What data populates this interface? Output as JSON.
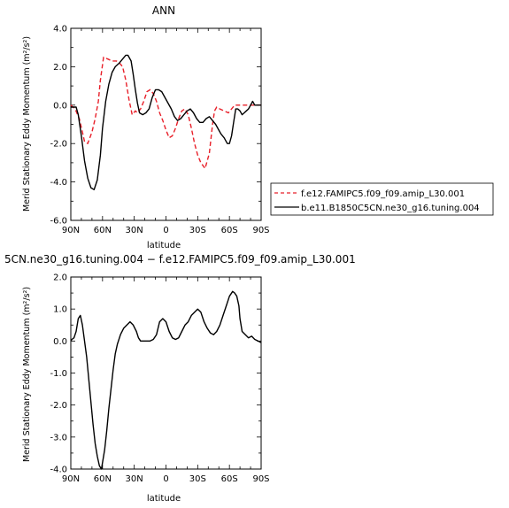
{
  "chart_data": [
    {
      "type": "line",
      "title": "ANN",
      "xlabel": "latitude",
      "ylabel": "Merid Stationary Eddy Momentum  (m²/s²)",
      "x_ticks": [
        "90N",
        "60N",
        "30N",
        "0",
        "30S",
        "60S",
        "90S"
      ],
      "y_ticks": [
        "-6.0",
        "-4.0",
        "-2.0",
        "0.0",
        "2.0",
        "4.0"
      ],
      "xlim": [
        90,
        -90
      ],
      "ylim": [
        -6,
        4
      ],
      "grid": false,
      "legend": "right",
      "series": [
        {
          "name": "f.e12.FAMIPC5.f09_f09.amip_L30.001",
          "color": "#e8202a",
          "dash": "dashed",
          "x": [
            90,
            86,
            82,
            79,
            77,
            74,
            70,
            67,
            64,
            62,
            59,
            55,
            51,
            47,
            44,
            41,
            38,
            35,
            32,
            29,
            27,
            24,
            21,
            18,
            15,
            12,
            9,
            6,
            3,
            0,
            -3,
            -6,
            -9,
            -12,
            -15,
            -18,
            -21,
            -24,
            -27,
            -30,
            -33,
            -37,
            -41,
            -44,
            -46,
            -48,
            -51,
            -55,
            -59,
            -62,
            -65,
            -67,
            -70,
            -73,
            -77,
            -80,
            -83,
            -85,
            -87,
            -90
          ],
          "values": [
            0.0,
            -0.2,
            -0.7,
            -1.4,
            -1.9,
            -2.0,
            -1.4,
            -0.7,
            0.2,
            1.3,
            2.5,
            2.4,
            2.3,
            2.3,
            2.2,
            2.0,
            1.3,
            0.3,
            -0.5,
            -0.3,
            -0.4,
            -0.2,
            0.2,
            0.7,
            0.8,
            0.6,
            0.2,
            -0.4,
            -0.8,
            -1.3,
            -1.7,
            -1.6,
            -1.2,
            -0.7,
            -0.3,
            -0.2,
            -0.5,
            -1.2,
            -2.0,
            -2.6,
            -3.0,
            -3.3,
            -2.5,
            -1.0,
            -0.3,
            -0.1,
            -0.2,
            -0.3,
            -0.4,
            -0.2,
            0.0,
            0.0,
            0.0,
            0.0,
            0.0,
            0.0,
            0.0,
            0.0,
            0.0,
            0.0
          ]
        },
        {
          "name": "b.e11.B1850C5CN.ne30_g16.tuning.004",
          "color": "#000000",
          "dash": "solid",
          "x": [
            90,
            87,
            85,
            83,
            80,
            77,
            74,
            71,
            68,
            65,
            62,
            60,
            57,
            54,
            51,
            48,
            44,
            41,
            38,
            36,
            33,
            31,
            29,
            27,
            25,
            22,
            19,
            16,
            13,
            10,
            7,
            4,
            1,
            -2,
            -5,
            -8,
            -11,
            -14,
            -17,
            -20,
            -23,
            -26,
            -29,
            -32,
            -35,
            -38,
            -41,
            -44,
            -47,
            -50,
            -52,
            -55,
            -58,
            -60,
            -62,
            -64,
            -66,
            -68,
            -70,
            -72,
            -74,
            -76,
            -78,
            -80,
            -82,
            -84,
            -86,
            -88,
            -90
          ],
          "values": [
            -0.1,
            -0.1,
            -0.1,
            -0.5,
            -1.6,
            -2.9,
            -3.8,
            -4.3,
            -4.4,
            -3.9,
            -2.6,
            -1.2,
            0.2,
            1.1,
            1.7,
            2.0,
            2.2,
            2.4,
            2.6,
            2.6,
            2.3,
            1.6,
            0.8,
            0.1,
            -0.4,
            -0.5,
            -0.4,
            -0.2,
            0.4,
            0.8,
            0.8,
            0.7,
            0.4,
            0.1,
            -0.2,
            -0.6,
            -0.8,
            -0.7,
            -0.5,
            -0.3,
            -0.2,
            -0.4,
            -0.7,
            -0.9,
            -0.9,
            -0.7,
            -0.6,
            -0.8,
            -1.0,
            -1.3,
            -1.5,
            -1.7,
            -2.0,
            -2.0,
            -1.6,
            -0.9,
            -0.2,
            -0.2,
            -0.3,
            -0.5,
            -0.4,
            -0.3,
            -0.2,
            0.0,
            0.2,
            0.0,
            0.0,
            0.0,
            0.0
          ]
        }
      ]
    },
    {
      "type": "line",
      "title": "5CN.ne30_g16.tuning.004 − f.e12.FAMIPC5.f09_f09.amip_L30.001",
      "xlabel": "latitude",
      "ylabel": "Merid Stationary Eddy Momentum  (m²/s²)",
      "x_ticks": [
        "90N",
        "60N",
        "30N",
        "0",
        "30S",
        "60S",
        "90S"
      ],
      "y_ticks": [
        "-4.0",
        "-3.0",
        "-2.0",
        "-1.0",
        "0.0",
        "1.0",
        "2.0"
      ],
      "xlim": [
        90,
        -90
      ],
      "ylim": [
        -4,
        2
      ],
      "grid": false,
      "series": [
        {
          "color": "#000000",
          "dash": "solid",
          "x": [
            90,
            89,
            87,
            85,
            83,
            81,
            79,
            77,
            75,
            73,
            71,
            69,
            67,
            65,
            63,
            61,
            60,
            58,
            56,
            54,
            52,
            50,
            48,
            46,
            43,
            40,
            37,
            34,
            31,
            28,
            26,
            24,
            21,
            18,
            15,
            12,
            9,
            6,
            3,
            0,
            -3,
            -6,
            -9,
            -12,
            -15,
            -18,
            -21,
            -24,
            -27,
            -30,
            -33,
            -36,
            -39,
            -42,
            -45,
            -48,
            -51,
            -54,
            -57,
            -60,
            -63,
            -65,
            -67,
            -69,
            -70,
            -72,
            -75,
            -78,
            -81,
            -84,
            -87,
            -90
          ],
          "values": [
            0.0,
            0.05,
            0.1,
            0.3,
            0.7,
            0.8,
            0.5,
            0.0,
            -0.5,
            -1.2,
            -1.9,
            -2.6,
            -3.2,
            -3.6,
            -3.9,
            -4.0,
            -3.8,
            -3.4,
            -2.8,
            -2.1,
            -1.5,
            -0.9,
            -0.4,
            -0.1,
            0.2,
            0.4,
            0.5,
            0.6,
            0.5,
            0.3,
            0.1,
            0.0,
            0.0,
            0.0,
            0.0,
            0.05,
            0.2,
            0.6,
            0.7,
            0.6,
            0.3,
            0.1,
            0.05,
            0.1,
            0.3,
            0.5,
            0.6,
            0.8,
            0.9,
            1.0,
            0.9,
            0.6,
            0.4,
            0.25,
            0.2,
            0.3,
            0.5,
            0.8,
            1.1,
            1.4,
            1.55,
            1.5,
            1.4,
            1.1,
            0.7,
            0.3,
            0.2,
            0.1,
            0.15,
            0.05,
            0.0,
            -0.05
          ]
        }
      ]
    }
  ]
}
